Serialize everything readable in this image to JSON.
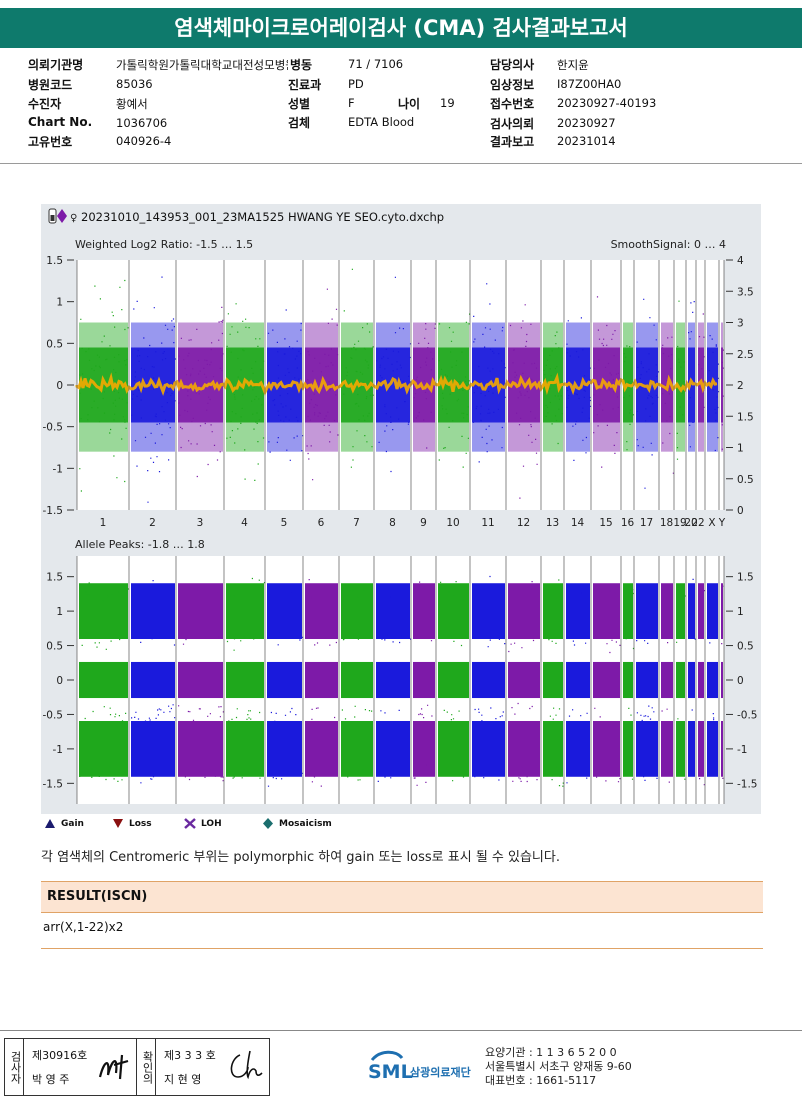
{
  "header": {
    "title": "염색체마이크로어레이검사 (CMA) 검사결과보고서"
  },
  "info": {
    "left": [
      {
        "label": "의뢰기관명",
        "value": "가톨릭학원가톨릭대학교대전성모병원"
      },
      {
        "label": "병원코드",
        "value": "85036"
      },
      {
        "label": "수진자",
        "value": "황예서"
      },
      {
        "label": "Chart No.",
        "value": "1036706"
      },
      {
        "label": "고유번호",
        "value": "040926-4"
      }
    ],
    "middle": [
      {
        "label": "병동",
        "value": "71 / 7106"
      },
      {
        "label": "진료과",
        "value": "PD"
      },
      {
        "label": "성별",
        "value": "F"
      },
      {
        "label": "검체",
        "value": "EDTA Blood"
      }
    ],
    "age": {
      "label": "나이",
      "value": "19"
    },
    "right": [
      {
        "label": "담당의사",
        "value": "한지윤"
      },
      {
        "label": "임상정보",
        "value": "I87Z00HA0"
      },
      {
        "label": "접수번호",
        "value": "20230927-40193"
      },
      {
        "label": "검사의뢰",
        "value": "20230927"
      },
      {
        "label": "결과보고",
        "value": "20231014"
      }
    ]
  },
  "chart": {
    "file": "20231010_143953_001_23MA1525 HWANG YE SEO.cyto.dxchp",
    "sex_symbol": "♀",
    "top_panel_title": "Weighted Log2 Ratio: -1.5 … 1.5",
    "top_panel_right_title": "SmoothSignal: 0 … 4",
    "bottom_panel_title": "Allele Peaks: -1.8 … 1.8",
    "top_left_ticks": [
      "1.5",
      "1",
      "0.5",
      "0",
      "-0.5",
      "-1",
      "-1.5"
    ],
    "top_right_ticks": [
      "4",
      "3.5",
      "3",
      "2.5",
      "2",
      "1.5",
      "1",
      "0.5",
      "0"
    ],
    "bottom_ticks": [
      "1.5",
      "1",
      "0.5",
      "0",
      "-0.5",
      "-1",
      "-1.5"
    ],
    "chromosomes": [
      "1",
      "2",
      "3",
      "4",
      "5",
      "6",
      "7",
      "8",
      "9",
      "10",
      "11",
      "12",
      "13",
      "14",
      "15",
      "16",
      "17",
      "18",
      "19",
      "20",
      "...22",
      "X",
      "Y"
    ],
    "colors": {
      "green": "#1fa81c",
      "blue": "#1a1adc",
      "purple": "#7d1aa8",
      "orange": "#f5a800",
      "bg": "#e4e8ec"
    }
  },
  "legend": [
    {
      "icon": "gain-triangle",
      "label": "Gain",
      "color": "#1b1b6e"
    },
    {
      "icon": "loss-triangle",
      "label": "Loss",
      "color": "#8a1010"
    },
    {
      "icon": "loh-cross",
      "label": "LOH",
      "color": "#6a2aa0"
    },
    {
      "icon": "mosaicism-diamond",
      "label": "Mosaicism",
      "color": "#1a6e6e"
    }
  ],
  "note": "각 염색체의 Centromeric 부위는 polymorphic 하여 gain 또는 loss로 표시 될 수 있습니다.",
  "result": {
    "heading": "RESULT(ISCN)",
    "value": "arr(X,1-22)x2"
  },
  "footer": {
    "examiner_label": "검사자",
    "examiner_no": "제30916호",
    "examiner_name": "박 영 주",
    "confirmer_label": "확인의",
    "confirmer_no": "제3 3 3 호",
    "confirmer_name": "지 현 영",
    "org_logo": "SML",
    "org_name": "삼광의료재단",
    "org_code": "요양기관 : 1 1 3 6 5 2 0 0",
    "org_address": "서울특별시 서초구 양재동 9-60",
    "org_phone": "대표번호 : 1661-5117"
  }
}
